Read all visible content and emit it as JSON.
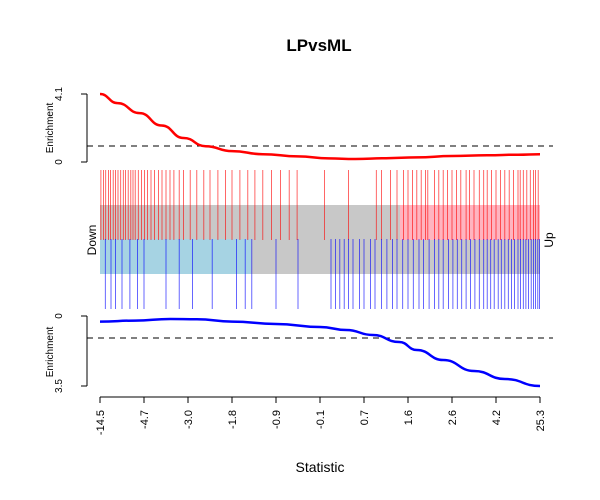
{
  "chart_data": {
    "type": "line",
    "title": "LPvsML",
    "xlabel": "Statistic",
    "x_tick_labels": [
      "-14.5",
      "-4.7",
      "-3.0",
      "-1.8",
      "-0.9",
      "-0.1",
      "0.7",
      "1.6",
      "2.6",
      "4.2",
      "25.3"
    ],
    "side_labels": {
      "left": "Down",
      "right": "Up"
    },
    "bar_colors": {
      "down": "#a6d3e3",
      "middle": "#c8c8c8",
      "up": "#ffb4c0"
    },
    "up_panel": {
      "ylabel": "Enrichment",
      "y_ticks": [
        "0",
        "4.1"
      ],
      "ylim": [
        0,
        4.1
      ],
      "threshold": 1.0,
      "line_color": "#ff0000",
      "x": [
        0,
        0.04,
        0.09,
        0.14,
        0.19,
        0.24,
        0.3,
        0.37,
        0.45,
        0.52,
        0.58,
        0.65,
        0.72,
        0.8,
        0.88,
        0.95,
        1.0
      ],
      "values": [
        4.1,
        3.55,
        2.95,
        2.2,
        1.45,
        0.95,
        0.66,
        0.47,
        0.34,
        0.22,
        0.18,
        0.23,
        0.28,
        0.36,
        0.41,
        0.44,
        0.47
      ]
    },
    "down_panel": {
      "ylabel": "Enrichment",
      "y_ticks": [
        "0",
        "3.5"
      ],
      "ylim": [
        0,
        3.5
      ],
      "threshold": 1.0,
      "line_color": "#0000ff",
      "x": [
        0,
        0.08,
        0.16,
        0.22,
        0.3,
        0.4,
        0.5,
        0.56,
        0.62,
        0.68,
        0.72,
        0.78,
        0.85,
        0.92,
        1.0
      ],
      "values": [
        0.28,
        0.23,
        0.15,
        0.16,
        0.28,
        0.4,
        0.55,
        0.7,
        0.95,
        1.3,
        1.7,
        2.2,
        2.75,
        3.15,
        3.5
      ]
    },
    "barcode_up_positions": [
      0.002,
      0.008,
      0.013,
      0.019,
      0.024,
      0.03,
      0.035,
      0.041,
      0.047,
      0.053,
      0.058,
      0.064,
      0.07,
      0.075,
      0.08,
      0.087,
      0.094,
      0.101,
      0.108,
      0.116,
      0.124,
      0.133,
      0.141,
      0.15,
      0.159,
      0.168,
      0.18,
      0.19,
      0.205,
      0.22,
      0.236,
      0.25,
      0.268,
      0.285,
      0.3,
      0.318,
      0.336,
      0.352,
      0.37,
      0.39,
      0.41,
      0.43,
      0.448,
      0.51,
      0.565,
      0.628,
      0.64,
      0.66,
      0.675,
      0.69,
      0.7,
      0.71,
      0.72,
      0.73,
      0.74,
      0.745,
      0.76,
      0.77,
      0.78,
      0.79,
      0.8,
      0.81,
      0.82,
      0.832,
      0.84,
      0.85,
      0.862,
      0.872,
      0.88,
      0.89,
      0.9,
      0.91,
      0.92,
      0.93,
      0.94,
      0.95,
      0.955,
      0.962,
      0.97,
      0.978,
      0.985,
      0.99,
      0.996
    ],
    "barcode_down_positions": [
      0.012,
      0.025,
      0.035,
      0.05,
      0.068,
      0.085,
      0.1,
      0.15,
      0.18,
      0.21,
      0.255,
      0.31,
      0.33,
      0.345,
      0.4,
      0.45,
      0.525,
      0.535,
      0.545,
      0.555,
      0.565,
      0.575,
      0.59,
      0.6,
      0.615,
      0.625,
      0.64,
      0.652,
      0.665,
      0.675,
      0.688,
      0.7,
      0.712,
      0.725,
      0.735,
      0.748,
      0.76,
      0.77,
      0.78,
      0.792,
      0.802,
      0.812,
      0.822,
      0.832,
      0.842,
      0.852,
      0.862,
      0.872,
      0.88,
      0.888,
      0.896,
      0.905,
      0.912,
      0.92,
      0.928,
      0.935,
      0.942,
      0.95,
      0.956,
      0.962,
      0.968,
      0.974,
      0.98,
      0.985,
      0.99,
      0.995,
      0.999
    ]
  }
}
